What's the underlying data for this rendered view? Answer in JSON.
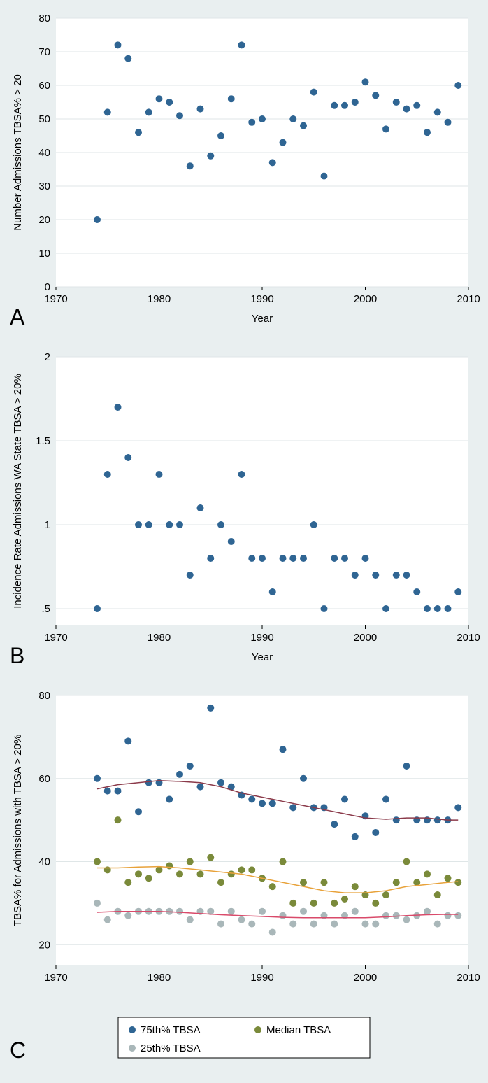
{
  "layout": {
    "figure_width": 698,
    "figure_height": 1546,
    "panel_bg": "#e9eff0",
    "plot_bg": "#ffffff",
    "grid_color": "#dfe6e7",
    "font_family": "Arial, Helvetica, sans-serif",
    "axis_label_fontsize": 15,
    "tick_label_fontsize": 15,
    "panel_letter_fontsize": 32
  },
  "panelA": {
    "letter": "A",
    "type": "scatter",
    "xlabel": "Year",
    "ylabel": "Number Admissions TBSA% > 20",
    "xlim": [
      1970,
      2010
    ],
    "ylim": [
      0,
      80
    ],
    "xtick_step": 10,
    "ytick_step": 10,
    "xticks": [
      1970,
      1980,
      1990,
      2000,
      2010
    ],
    "yticks": [
      0,
      10,
      20,
      30,
      40,
      50,
      60,
      70,
      80
    ],
    "marker_color": "#2f6593",
    "marker_radius": 5,
    "points": [
      {
        "x": 1974,
        "y": 20
      },
      {
        "x": 1975,
        "y": 52
      },
      {
        "x": 1976,
        "y": 72
      },
      {
        "x": 1977,
        "y": 68
      },
      {
        "x": 1978,
        "y": 46
      },
      {
        "x": 1979,
        "y": 52
      },
      {
        "x": 1980,
        "y": 56
      },
      {
        "x": 1981,
        "y": 55
      },
      {
        "x": 1982,
        "y": 51
      },
      {
        "x": 1983,
        "y": 36
      },
      {
        "x": 1984,
        "y": 53
      },
      {
        "x": 1985,
        "y": 39
      },
      {
        "x": 1986,
        "y": 45
      },
      {
        "x": 1987,
        "y": 56
      },
      {
        "x": 1988,
        "y": 72
      },
      {
        "x": 1989,
        "y": 49
      },
      {
        "x": 1990,
        "y": 50
      },
      {
        "x": 1991,
        "y": 37
      },
      {
        "x": 1992,
        "y": 43
      },
      {
        "x": 1993,
        "y": 50
      },
      {
        "x": 1994,
        "y": 48
      },
      {
        "x": 1995,
        "y": 58
      },
      {
        "x": 1996,
        "y": 33
      },
      {
        "x": 1997,
        "y": 54
      },
      {
        "x": 1998,
        "y": 54
      },
      {
        "x": 1999,
        "y": 55
      },
      {
        "x": 2000,
        "y": 61
      },
      {
        "x": 2001,
        "y": 57
      },
      {
        "x": 2002,
        "y": 47
      },
      {
        "x": 2003,
        "y": 55
      },
      {
        "x": 2004,
        "y": 53
      },
      {
        "x": 2005,
        "y": 54
      },
      {
        "x": 2006,
        "y": 46
      },
      {
        "x": 2007,
        "y": 52
      },
      {
        "x": 2008,
        "y": 49
      },
      {
        "x": 2009,
        "y": 60
      }
    ]
  },
  "panelB": {
    "letter": "B",
    "type": "scatter",
    "xlabel": "Year",
    "ylabel": "Incidence Rate Admissions WA State TBSA > 20%",
    "xlim": [
      1970,
      2010
    ],
    "ylim": [
      0.4,
      2.0
    ],
    "xtick_step": 10,
    "ytick_step": 0.5,
    "xticks": [
      1970,
      1980,
      1990,
      2000,
      2010
    ],
    "yticks": [
      0.5,
      1,
      1.5,
      2
    ],
    "ytick_labels": [
      ".5",
      "1",
      "1.5",
      "2"
    ],
    "marker_color": "#2f6593",
    "marker_radius": 5,
    "points": [
      {
        "x": 1974,
        "y": 0.5
      },
      {
        "x": 1975,
        "y": 1.3
      },
      {
        "x": 1976,
        "y": 1.7
      },
      {
        "x": 1977,
        "y": 1.4
      },
      {
        "x": 1978,
        "y": 1.0
      },
      {
        "x": 1979,
        "y": 1.0
      },
      {
        "x": 1980,
        "y": 1.3
      },
      {
        "x": 1981,
        "y": 1.0
      },
      {
        "x": 1982,
        "y": 1.0
      },
      {
        "x": 1983,
        "y": 0.7
      },
      {
        "x": 1984,
        "y": 1.1
      },
      {
        "x": 1985,
        "y": 0.8
      },
      {
        "x": 1986,
        "y": 1.0
      },
      {
        "x": 1987,
        "y": 0.9
      },
      {
        "x": 1988,
        "y": 1.3
      },
      {
        "x": 1989,
        "y": 0.8
      },
      {
        "x": 1990,
        "y": 0.8
      },
      {
        "x": 1991,
        "y": 0.6
      },
      {
        "x": 1992,
        "y": 0.8
      },
      {
        "x": 1993,
        "y": 0.8
      },
      {
        "x": 1994,
        "y": 0.8
      },
      {
        "x": 1995,
        "y": 1.0
      },
      {
        "x": 1996,
        "y": 0.5
      },
      {
        "x": 1997,
        "y": 0.8
      },
      {
        "x": 1998,
        "y": 0.8
      },
      {
        "x": 1999,
        "y": 0.7
      },
      {
        "x": 2000,
        "y": 0.8
      },
      {
        "x": 2001,
        "y": 0.7
      },
      {
        "x": 2002,
        "y": 0.5
      },
      {
        "x": 2003,
        "y": 0.7
      },
      {
        "x": 2004,
        "y": 0.7
      },
      {
        "x": 2005,
        "y": 0.6
      },
      {
        "x": 2006,
        "y": 0.5
      },
      {
        "x": 2007,
        "y": 0.5
      },
      {
        "x": 2008,
        "y": 0.5
      },
      {
        "x": 2009,
        "y": 0.6
      }
    ]
  },
  "panelC": {
    "letter": "C",
    "type": "scatter_with_lines",
    "xlabel": "Year",
    "ylabel": "TBSA% for Admissions with TBSA > 20%",
    "xlim": [
      1970,
      2010
    ],
    "ylim": [
      15,
      80
    ],
    "xtick_step": 10,
    "ytick_step": 20,
    "xticks": [
      1970,
      1980,
      1990,
      2000,
      2010
    ],
    "yticks": [
      20,
      40,
      60,
      80
    ],
    "marker_radius": 5,
    "series": {
      "p75": {
        "label": "75th% TBSA",
        "color": "#2f6593",
        "points": [
          {
            "x": 1974,
            "y": 60
          },
          {
            "x": 1975,
            "y": 57
          },
          {
            "x": 1976,
            "y": 57
          },
          {
            "x": 1977,
            "y": 69
          },
          {
            "x": 1978,
            "y": 52
          },
          {
            "x": 1979,
            "y": 59
          },
          {
            "x": 1980,
            "y": 59
          },
          {
            "x": 1981,
            "y": 55
          },
          {
            "x": 1982,
            "y": 61
          },
          {
            "x": 1983,
            "y": 63
          },
          {
            "x": 1984,
            "y": 58
          },
          {
            "x": 1985,
            "y": 77
          },
          {
            "x": 1986,
            "y": 59
          },
          {
            "x": 1987,
            "y": 58
          },
          {
            "x": 1988,
            "y": 56
          },
          {
            "x": 1989,
            "y": 55
          },
          {
            "x": 1990,
            "y": 54
          },
          {
            "x": 1991,
            "y": 54
          },
          {
            "x": 1992,
            "y": 67
          },
          {
            "x": 1993,
            "y": 53
          },
          {
            "x": 1994,
            "y": 60
          },
          {
            "x": 1995,
            "y": 53
          },
          {
            "x": 1996,
            "y": 53
          },
          {
            "x": 1997,
            "y": 49
          },
          {
            "x": 1998,
            "y": 55
          },
          {
            "x": 1999,
            "y": 46
          },
          {
            "x": 2000,
            "y": 51
          },
          {
            "x": 2001,
            "y": 47
          },
          {
            "x": 2002,
            "y": 55
          },
          {
            "x": 2003,
            "y": 50
          },
          {
            "x": 2004,
            "y": 63
          },
          {
            "x": 2005,
            "y": 50
          },
          {
            "x": 2006,
            "y": 50
          },
          {
            "x": 2007,
            "y": 50
          },
          {
            "x": 2008,
            "y": 50
          },
          {
            "x": 2009,
            "y": 53
          }
        ]
      },
      "median": {
        "label": "Median TBSA",
        "color": "#7a8a3a",
        "points": [
          {
            "x": 1974,
            "y": 40
          },
          {
            "x": 1975,
            "y": 38
          },
          {
            "x": 1976,
            "y": 50
          },
          {
            "x": 1977,
            "y": 35
          },
          {
            "x": 1978,
            "y": 37
          },
          {
            "x": 1979,
            "y": 36
          },
          {
            "x": 1980,
            "y": 38
          },
          {
            "x": 1981,
            "y": 39
          },
          {
            "x": 1982,
            "y": 37
          },
          {
            "x": 1983,
            "y": 40
          },
          {
            "x": 1984,
            "y": 37
          },
          {
            "x": 1985,
            "y": 41
          },
          {
            "x": 1986,
            "y": 35
          },
          {
            "x": 1987,
            "y": 37
          },
          {
            "x": 1988,
            "y": 38
          },
          {
            "x": 1989,
            "y": 38
          },
          {
            "x": 1990,
            "y": 36
          },
          {
            "x": 1991,
            "y": 34
          },
          {
            "x": 1992,
            "y": 40
          },
          {
            "x": 1993,
            "y": 30
          },
          {
            "x": 1994,
            "y": 35
          },
          {
            "x": 1995,
            "y": 30
          },
          {
            "x": 1996,
            "y": 35
          },
          {
            "x": 1997,
            "y": 30
          },
          {
            "x": 1998,
            "y": 31
          },
          {
            "x": 1999,
            "y": 34
          },
          {
            "x": 2000,
            "y": 32
          },
          {
            "x": 2001,
            "y": 30
          },
          {
            "x": 2002,
            "y": 32
          },
          {
            "x": 2003,
            "y": 35
          },
          {
            "x": 2004,
            "y": 40
          },
          {
            "x": 2005,
            "y": 35
          },
          {
            "x": 2006,
            "y": 37
          },
          {
            "x": 2007,
            "y": 32
          },
          {
            "x": 2008,
            "y": 36
          },
          {
            "x": 2009,
            "y": 35
          }
        ]
      },
      "p25": {
        "label": "25th% TBSA",
        "color": "#a9b7b9",
        "points": [
          {
            "x": 1974,
            "y": 30
          },
          {
            "x": 1975,
            "y": 26
          },
          {
            "x": 1976,
            "y": 28
          },
          {
            "x": 1977,
            "y": 27
          },
          {
            "x": 1978,
            "y": 28
          },
          {
            "x": 1979,
            "y": 28
          },
          {
            "x": 1980,
            "y": 28
          },
          {
            "x": 1981,
            "y": 28
          },
          {
            "x": 1982,
            "y": 28
          },
          {
            "x": 1983,
            "y": 26
          },
          {
            "x": 1984,
            "y": 28
          },
          {
            "x": 1985,
            "y": 28
          },
          {
            "x": 1986,
            "y": 25
          },
          {
            "x": 1987,
            "y": 28
          },
          {
            "x": 1988,
            "y": 26
          },
          {
            "x": 1989,
            "y": 25
          },
          {
            "x": 1990,
            "y": 28
          },
          {
            "x": 1991,
            "y": 23
          },
          {
            "x": 1992,
            "y": 27
          },
          {
            "x": 1993,
            "y": 25
          },
          {
            "x": 1994,
            "y": 28
          },
          {
            "x": 1995,
            "y": 25
          },
          {
            "x": 1996,
            "y": 27
          },
          {
            "x": 1997,
            "y": 25
          },
          {
            "x": 1998,
            "y": 27
          },
          {
            "x": 1999,
            "y": 28
          },
          {
            "x": 2000,
            "y": 25
          },
          {
            "x": 2001,
            "y": 25
          },
          {
            "x": 2002,
            "y": 27
          },
          {
            "x": 2003,
            "y": 27
          },
          {
            "x": 2004,
            "y": 26
          },
          {
            "x": 2005,
            "y": 27
          },
          {
            "x": 2006,
            "y": 28
          },
          {
            "x": 2007,
            "y": 25
          },
          {
            "x": 2008,
            "y": 27
          },
          {
            "x": 2009,
            "y": 27
          }
        ]
      }
    },
    "smooth_lines": {
      "p75": {
        "color": "#8b3a4a",
        "points": [
          {
            "x": 1974,
            "y": 57.5
          },
          {
            "x": 1976,
            "y": 58.5
          },
          {
            "x": 1978,
            "y": 59
          },
          {
            "x": 1980,
            "y": 59.5
          },
          {
            "x": 1982,
            "y": 59.3
          },
          {
            "x": 1984,
            "y": 59
          },
          {
            "x": 1986,
            "y": 58
          },
          {
            "x": 1988,
            "y": 56.5
          },
          {
            "x": 1990,
            "y": 55.5
          },
          {
            "x": 1992,
            "y": 54.5
          },
          {
            "x": 1994,
            "y": 53.5
          },
          {
            "x": 1996,
            "y": 52.5
          },
          {
            "x": 1998,
            "y": 51.5
          },
          {
            "x": 2000,
            "y": 50.5
          },
          {
            "x": 2002,
            "y": 50.2
          },
          {
            "x": 2004,
            "y": 50.5
          },
          {
            "x": 2006,
            "y": 50.5
          },
          {
            "x": 2008,
            "y": 50
          },
          {
            "x": 2009,
            "y": 50
          }
        ]
      },
      "median": {
        "color": "#e8a23a",
        "points": [
          {
            "x": 1974,
            "y": 38.5
          },
          {
            "x": 1976,
            "y": 38.5
          },
          {
            "x": 1978,
            "y": 38.7
          },
          {
            "x": 1980,
            "y": 38.8
          },
          {
            "x": 1982,
            "y": 38.5
          },
          {
            "x": 1984,
            "y": 38
          },
          {
            "x": 1986,
            "y": 37.5
          },
          {
            "x": 1988,
            "y": 37
          },
          {
            "x": 1990,
            "y": 36
          },
          {
            "x": 1992,
            "y": 35
          },
          {
            "x": 1994,
            "y": 34
          },
          {
            "x": 1996,
            "y": 33
          },
          {
            "x": 1998,
            "y": 32.5
          },
          {
            "x": 2000,
            "y": 32.5
          },
          {
            "x": 2002,
            "y": 33
          },
          {
            "x": 2004,
            "y": 34
          },
          {
            "x": 2006,
            "y": 34.5
          },
          {
            "x": 2008,
            "y": 35
          },
          {
            "x": 2009,
            "y": 35.2
          }
        ]
      },
      "p25": {
        "color": "#d94a6a",
        "points": [
          {
            "x": 1974,
            "y": 27.8
          },
          {
            "x": 1976,
            "y": 28
          },
          {
            "x": 1978,
            "y": 28
          },
          {
            "x": 1980,
            "y": 28
          },
          {
            "x": 1982,
            "y": 27.8
          },
          {
            "x": 1984,
            "y": 27.5
          },
          {
            "x": 1986,
            "y": 27.2
          },
          {
            "x": 1988,
            "y": 27
          },
          {
            "x": 1990,
            "y": 26.8
          },
          {
            "x": 1992,
            "y": 26.6
          },
          {
            "x": 1994,
            "y": 26.5
          },
          {
            "x": 1996,
            "y": 26.5
          },
          {
            "x": 1998,
            "y": 26.5
          },
          {
            "x": 2000,
            "y": 26.5
          },
          {
            "x": 2002,
            "y": 26.7
          },
          {
            "x": 2004,
            "y": 27
          },
          {
            "x": 2006,
            "y": 27.2
          },
          {
            "x": 2008,
            "y": 27.3
          },
          {
            "x": 2009,
            "y": 27.3
          }
        ]
      }
    },
    "line_width": 1.5,
    "legend": {
      "items": [
        {
          "label": "75th% TBSA",
          "color": "#2f6593"
        },
        {
          "label": "Median TBSA",
          "color": "#7a8a3a"
        },
        {
          "label": "25th% TBSA",
          "color": "#a9b7b9"
        }
      ]
    }
  }
}
